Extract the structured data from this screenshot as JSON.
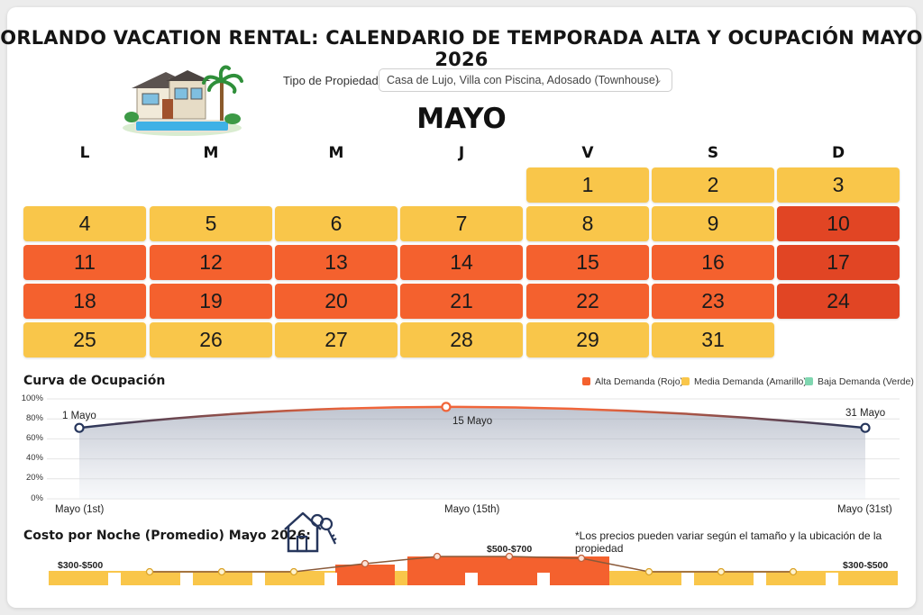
{
  "title": "ORLANDO VACATION RENTAL: CALENDARIO DE TEMPORADA ALTA Y OCUPACIÓN MAYO 2026",
  "property_filter": {
    "label": "Tipo de Propiedad",
    "value": "Casa de Lujo, Villa con Piscina, Adosado (Townhouse)"
  },
  "calendar": {
    "month": "MAYO",
    "weekdays": [
      "L",
      "M",
      "M",
      "J",
      "V",
      "S",
      "D"
    ],
    "weeks": [
      [
        null,
        null,
        null,
        null,
        {
          "day": "1",
          "level": "yellow"
        },
        {
          "day": "2",
          "level": "yellow"
        },
        {
          "day": "3",
          "level": "yellow"
        }
      ],
      [
        {
          "day": "4",
          "level": "yellow"
        },
        {
          "day": "5",
          "level": "yellow"
        },
        {
          "day": "6",
          "level": "yellow"
        },
        {
          "day": "7",
          "level": "yellow"
        },
        {
          "day": "8",
          "level": "yellow"
        },
        {
          "day": "9",
          "level": "yellow"
        },
        {
          "day": "10",
          "level": "red"
        }
      ],
      [
        {
          "day": "11",
          "level": "orange"
        },
        {
          "day": "12",
          "level": "orange"
        },
        {
          "day": "13",
          "level": "orange"
        },
        {
          "day": "14",
          "level": "orange"
        },
        {
          "day": "15",
          "level": "orange"
        },
        {
          "day": "16",
          "level": "orange"
        },
        {
          "day": "17",
          "level": "red"
        }
      ],
      [
        {
          "day": "18",
          "level": "orange"
        },
        {
          "day": "19",
          "level": "orange"
        },
        {
          "day": "20",
          "level": "orange"
        },
        {
          "day": "21",
          "level": "orange"
        },
        {
          "day": "22",
          "level": "orange"
        },
        {
          "day": "23",
          "level": "orange"
        },
        {
          "day": "24",
          "level": "red"
        }
      ],
      [
        {
          "day": "25",
          "level": "yellow"
        },
        {
          "day": "26",
          "level": "yellow"
        },
        {
          "day": "27",
          "level": "yellow"
        },
        {
          "day": "28",
          "level": "yellow"
        },
        {
          "day": "29",
          "level": "yellow"
        },
        {
          "day": "31",
          "level": "yellow"
        },
        null
      ]
    ]
  },
  "colors": {
    "yellow": "#f9c64a",
    "orange": "#f4612e",
    "red": "#e14524",
    "green": "#7fd6b0",
    "line_dark": "#26365c"
  },
  "occupancy": {
    "title": "Curva de Ocupación",
    "legend": [
      {
        "label": "Alta Demanda (Rojo)",
        "color": "#f4612e"
      },
      {
        "label": "Media Demanda (Amarillo)",
        "color": "#f9c64a"
      },
      {
        "label": "Baja Demanda (Verde)",
        "color": "#7fd6b0"
      }
    ]
  },
  "chart_data": {
    "type": "area",
    "title": "Curva de Ocupación",
    "x": [
      1,
      15,
      31
    ],
    "xticks": [
      "Mayo (1st)",
      "Mayo (15th)",
      "Mayo (31st)"
    ],
    "point_labels": [
      "1 Mayo",
      "15 Mayo",
      "31 Mayo"
    ],
    "values": [
      71,
      92,
      71
    ],
    "yticks": [
      "0%",
      "20%",
      "40%",
      "60%",
      "80%",
      "100%"
    ],
    "ylim": [
      0,
      100
    ],
    "xlim": [
      1,
      31
    ],
    "grid": true,
    "legend_position": "top-right"
  },
  "cost": {
    "title": "Costo por Noche (Promedio) Mayo 2026:",
    "note": "*Los precios pueden variar según el tamaño y la ubicación de la propiedad",
    "price_left": "$300-$500",
    "price_mid": "$500-$700",
    "price_right": "$300-$500"
  },
  "icons": {
    "house": "house-pool-illustration",
    "house_keys": "house-keys-icon",
    "dropdown": "chevron-down-icon"
  }
}
